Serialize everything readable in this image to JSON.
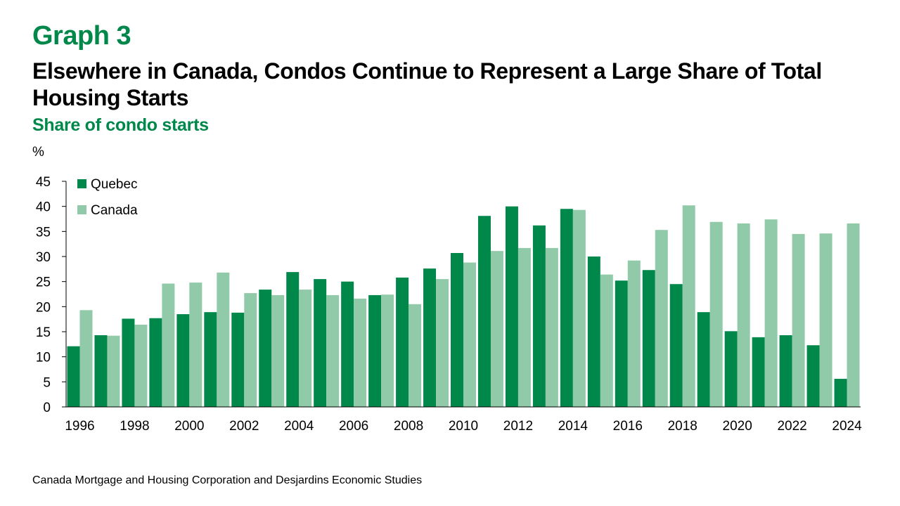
{
  "header": {
    "graph_label": "Graph 3",
    "title": "Elsewhere in Canada, Condos Continue to Represent a Large Share of Total Housing Starts",
    "subtitle": "Share of condo starts",
    "unit": "%"
  },
  "source": "Canada Mortgage and Housing Corporation and Desjardins Economic Studies",
  "chart_data": {
    "type": "bar",
    "title": "Elsewhere in Canada, Condos Continue to Represent a Large Share of Total Housing Starts",
    "subtitle": "Share of condo starts",
    "xlabel": "",
    "ylabel": "%",
    "ylim": [
      0,
      45
    ],
    "yticks": [
      0,
      5,
      10,
      15,
      20,
      25,
      30,
      35,
      40,
      45
    ],
    "grid": false,
    "legend_position": "top-left",
    "categories": [
      "1996",
      "1997",
      "1998",
      "1999",
      "2000",
      "2001",
      "2002",
      "2003",
      "2004",
      "2005",
      "2006",
      "2007",
      "2008",
      "2009",
      "2010",
      "2011",
      "2012",
      "2013",
      "2014",
      "2015",
      "2016",
      "2017",
      "2018",
      "2019",
      "2020",
      "2021",
      "2022",
      "2023",
      "2024"
    ],
    "xtick_labels": [
      "1996",
      "1998",
      "2000",
      "2002",
      "2004",
      "2006",
      "2008",
      "2010",
      "2012",
      "2014",
      "2016",
      "2018",
      "2020",
      "2022",
      "2024"
    ],
    "series": [
      {
        "name": "Quebec",
        "color": "#00874a",
        "values": [
          12.1,
          14.3,
          17.6,
          17.7,
          18.5,
          18.9,
          18.8,
          23.4,
          26.9,
          25.5,
          25.0,
          22.3,
          25.8,
          27.6,
          30.7,
          38.1,
          40.0,
          36.2,
          39.5,
          30.0,
          25.2,
          27.3,
          24.5,
          18.9,
          15.1,
          13.9,
          14.3,
          12.3,
          5.6
        ]
      },
      {
        "name": "Canada",
        "color": "#90caa9",
        "values": [
          19.3,
          14.2,
          16.4,
          24.6,
          24.8,
          26.8,
          22.7,
          22.3,
          23.4,
          22.3,
          21.6,
          22.4,
          20.5,
          25.5,
          28.8,
          31.1,
          31.7,
          31.7,
          39.3,
          26.4,
          29.2,
          35.3,
          40.2,
          36.9,
          36.6,
          37.4,
          34.5,
          34.6,
          36.6
        ]
      }
    ]
  }
}
